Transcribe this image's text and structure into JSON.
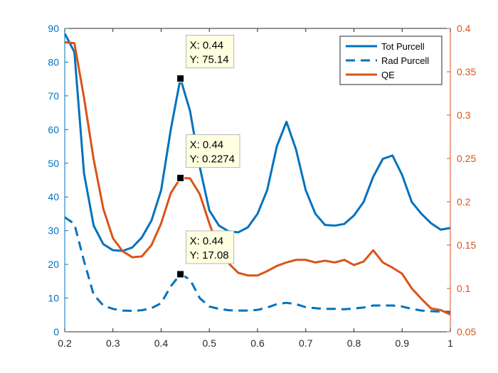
{
  "chart_data": {
    "type": "line",
    "x": [
      0.2,
      0.22,
      0.24,
      0.26,
      0.28,
      0.3,
      0.32,
      0.34,
      0.36,
      0.38,
      0.4,
      0.42,
      0.44,
      0.46,
      0.48,
      0.5,
      0.52,
      0.54,
      0.56,
      0.58,
      0.6,
      0.62,
      0.64,
      0.66,
      0.68,
      0.7,
      0.72,
      0.74,
      0.76,
      0.78,
      0.8,
      0.82,
      0.84,
      0.86,
      0.88,
      0.9,
      0.92,
      0.94,
      0.96,
      0.98,
      1.0
    ],
    "series": [
      {
        "name": "Tot Purcell",
        "axis": "left",
        "style": "solid",
        "color": "#0072BD",
        "values": [
          88.5,
          83,
          47,
          31.5,
          26,
          24.2,
          24,
          25,
          28,
          33,
          42,
          60,
          75.14,
          65.5,
          49,
          36,
          31.5,
          29.8,
          29.5,
          31,
          35,
          42,
          55,
          62.3,
          54,
          42,
          35,
          31.7,
          31.5,
          32,
          34.5,
          38.5,
          46,
          51.3,
          52.3,
          46.5,
          38.5,
          35,
          32.2,
          30.3,
          30.8
        ]
      },
      {
        "name": "Rad Purcell",
        "axis": "left",
        "style": "dashed",
        "color": "#0072BD",
        "values": [
          34,
          32,
          21,
          11,
          7.8,
          6.8,
          6.3,
          6.2,
          6.4,
          7,
          8.5,
          13.5,
          17.08,
          15.5,
          10,
          7.5,
          6.8,
          6.4,
          6.3,
          6.3,
          6.5,
          7.2,
          8.2,
          8.6,
          8.2,
          7.3,
          7,
          6.8,
          6.8,
          6.7,
          6.9,
          7.2,
          7.8,
          7.8,
          7.8,
          7.5,
          6.8,
          6.3,
          6.1,
          6,
          5.9
        ]
      },
      {
        "name": "QE",
        "axis": "right",
        "style": "solid",
        "color": "#D95319",
        "values": [
          0.384,
          0.383,
          0.32,
          0.249,
          0.192,
          0.158,
          0.143,
          0.136,
          0.137,
          0.15,
          0.175,
          0.21,
          0.2274,
          0.227,
          0.209,
          0.175,
          0.145,
          0.129,
          0.118,
          0.115,
          0.115,
          0.12,
          0.126,
          0.13,
          0.133,
          0.133,
          0.13,
          0.132,
          0.13,
          0.133,
          0.127,
          0.131,
          0.144,
          0.13,
          0.124,
          0.117,
          0.1,
          0.088,
          0.077,
          0.075,
          0.07
        ]
      }
    ],
    "xlim": [
      0.2,
      1
    ],
    "ylim_left": [
      0,
      90
    ],
    "ylim_right": [
      0.05,
      0.4
    ],
    "xticks": [
      "0.2",
      "0.3",
      "0.4",
      "0.5",
      "0.6",
      "0.7",
      "0.8",
      "0.9",
      "1"
    ],
    "xtick_values": [
      0.2,
      0.3,
      0.4,
      0.5,
      0.6,
      0.7,
      0.8,
      0.9,
      1
    ],
    "yticks_left": [
      "0",
      "10",
      "20",
      "30",
      "40",
      "50",
      "60",
      "70",
      "80",
      "90"
    ],
    "yticks_left_values": [
      0,
      10,
      20,
      30,
      40,
      50,
      60,
      70,
      80,
      90
    ],
    "yticks_right": [
      "0.05",
      "0.1",
      "0.15",
      "0.2",
      "0.25",
      "0.3",
      "0.35",
      "0.4"
    ],
    "yticks_right_values": [
      0.05,
      0.1,
      0.15,
      0.2,
      0.25,
      0.3,
      0.35,
      0.4
    ],
    "left_axis_color": "#0072BD",
    "right_axis_color": "#D95319",
    "grid": false,
    "legend_placement": "top-right",
    "datatips": [
      {
        "series": "Tot Purcell",
        "x": 0.44,
        "y": 75.14,
        "axis": "left",
        "line1": "X: 0.44",
        "line2": "Y: 75.14"
      },
      {
        "series": "QE",
        "x": 0.44,
        "y": 0.2274,
        "axis": "right",
        "line1": "X: 0.44",
        "line2": "Y: 0.2274"
      },
      {
        "series": "Rad Purcell",
        "x": 0.44,
        "y": 17.08,
        "axis": "left",
        "line1": "X: 0.44",
        "line2": "Y: 17.08"
      }
    ]
  }
}
